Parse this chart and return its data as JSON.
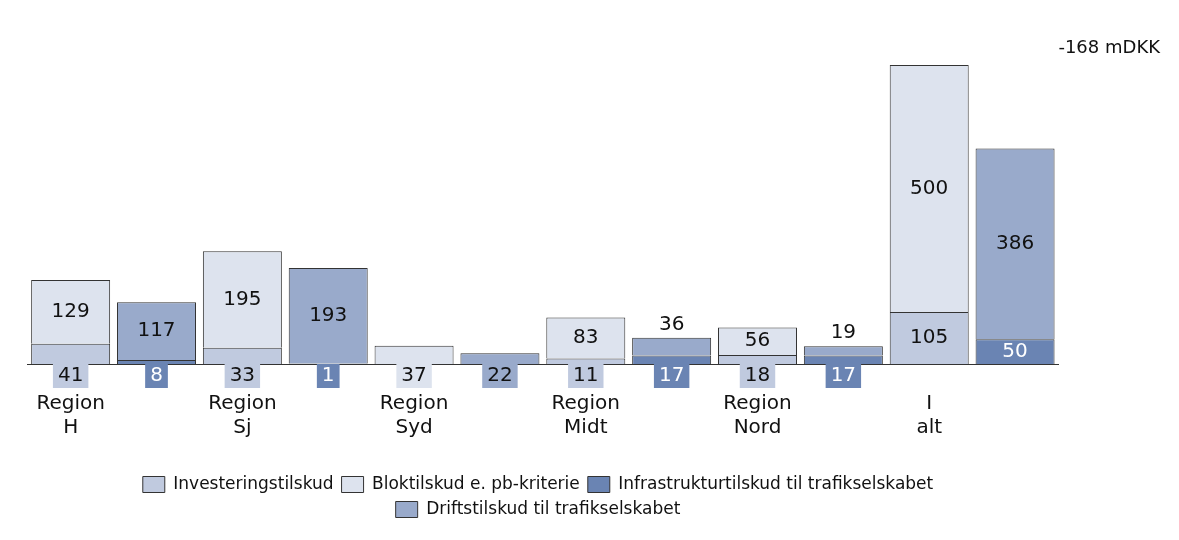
{
  "chart_data": {
    "type": "bar",
    "stacked": true,
    "data_labels": true,
    "legend": "bottom",
    "grid": false,
    "categories": [
      "Region H",
      null,
      "Region Sj",
      null,
      "Region Syd",
      null,
      "Region Midt",
      null,
      "Region Nord",
      null,
      "I alt",
      null
    ],
    "series": [
      {
        "name": "Investeringstilskud",
        "color": "#c0cadf",
        "values": [
          41,
          null,
          33,
          null,
          null,
          null,
          11,
          null,
          18,
          null,
          105,
          null
        ]
      },
      {
        "name": "Bloktilskud e. pb-kriterie",
        "color": "#dde3ee",
        "values": [
          129,
          null,
          195,
          null,
          37,
          null,
          83,
          null,
          56,
          null,
          500,
          null
        ]
      },
      {
        "name": "Infrastrukturtilskud til trafikselskabet",
        "color": "#6a84b3",
        "values": [
          null,
          8,
          null,
          1,
          null,
          null,
          null,
          17,
          null,
          17,
          null,
          50
        ]
      },
      {
        "name": "Driftstilskud til trafikselskabet",
        "color": "#99aacb",
        "values": [
          null,
          117,
          null,
          193,
          null,
          22,
          null,
          36,
          null,
          19,
          null,
          386
        ]
      }
    ],
    "annotations": [
      "-168 mDKK"
    ]
  }
}
